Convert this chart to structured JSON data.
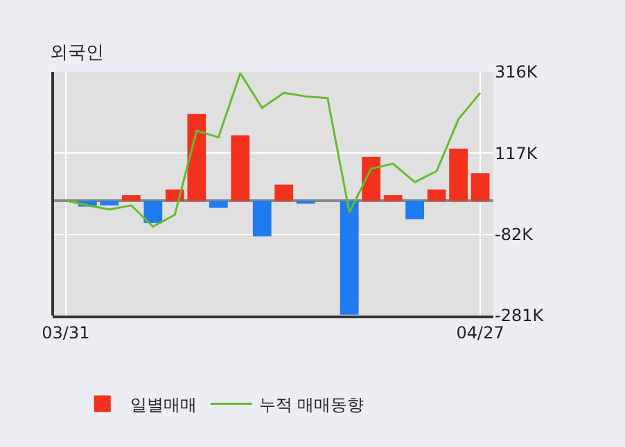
{
  "chart_data": {
    "type": "bar",
    "title": "외국인",
    "categories": [
      "03/31",
      null,
      null,
      null,
      null,
      null,
      null,
      null,
      null,
      null,
      null,
      null,
      null,
      null,
      null,
      null,
      null,
      null,
      null,
      "04/27"
    ],
    "series": [
      {
        "name": "일별매매",
        "colors": [
          "#f0321e",
          "#1e7cf0",
          "#1e7cf0",
          "#f0321e",
          "#1e7cf0",
          "#f0321e",
          "#f0321e",
          "#1e7cf0",
          "#f0321e",
          "#1e7cf0",
          "#f0321e",
          "#1e7cf0",
          "#f0321e",
          "#1e7cf0",
          "#f0321e",
          "#f0321e",
          "#1e7cf0",
          "#f0321e",
          "#f0321e",
          "#f0321e"
        ],
        "values": [
          0,
          -14000,
          -11000,
          14000,
          -54000,
          28000,
          213000,
          -17000,
          161000,
          -87000,
          40000,
          -7000,
          0,
          -279000,
          108000,
          14000,
          -45000,
          28000,
          128000,
          68000
        ]
      },
      {
        "name": "누적 매매동향",
        "type": "line",
        "color": "#66bb2a",
        "values": [
          1000,
          -11000,
          -21000,
          -11000,
          -63000,
          -34000,
          172000,
          156000,
          313000,
          228000,
          265000,
          256000,
          252000,
          -28000,
          79000,
          91000,
          46000,
          73000,
          200000,
          265000
        ]
      }
    ],
    "ylim": [
      -281000,
      316000
    ],
    "yticks": [
      {
        "value": 316000,
        "label": "316K"
      },
      {
        "value": 117000,
        "label": "117K"
      },
      {
        "value": -82000,
        "label": "-82K"
      },
      {
        "value": -281000,
        "label": "-281K"
      }
    ],
    "grid": true,
    "legend": "bottom",
    "marker": "none"
  }
}
